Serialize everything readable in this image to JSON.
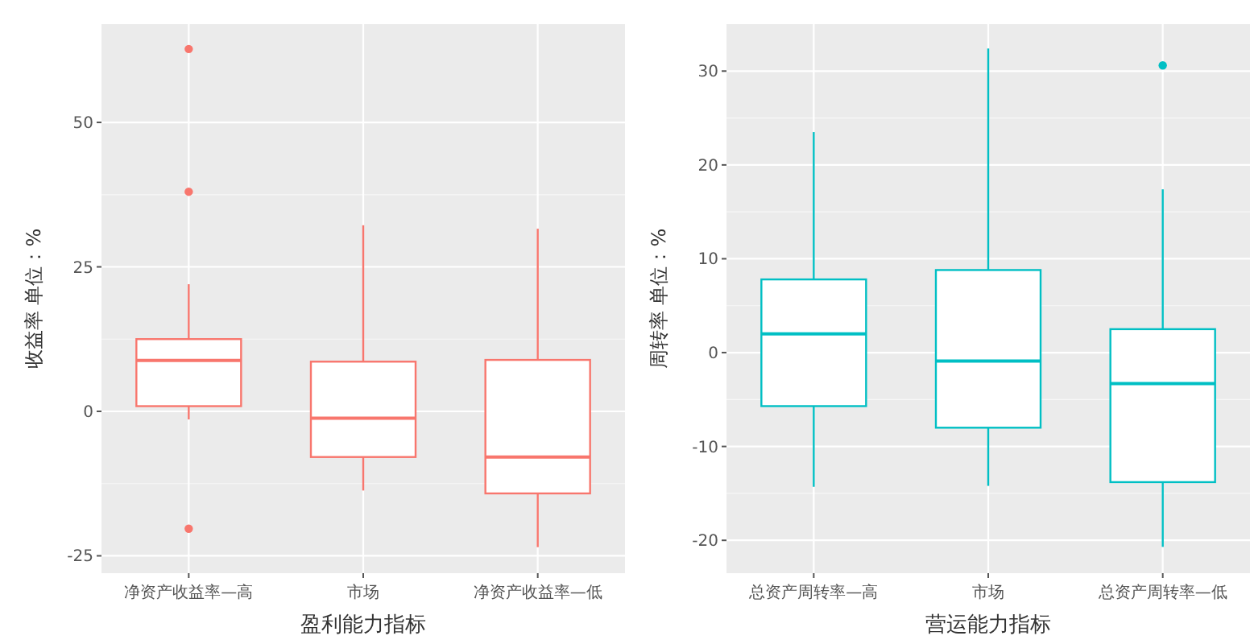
{
  "chart_data": [
    {
      "type": "box",
      "xlabel": "盈利能力指标",
      "ylabel": "收益率 单位：%",
      "categories": [
        "净资产收益率—高",
        "市场",
        "净资产收益率—低"
      ],
      "color": "#f8766d",
      "ylim": [
        -28,
        67
      ],
      "yticks": [
        -25,
        0,
        25,
        50
      ],
      "grid": true,
      "boxes": [
        {
          "low": -1.4,
          "q1": 0.9,
          "median": 8.8,
          "q3": 12.5,
          "high": 22,
          "outliers": [
            62.7,
            38,
            -20.3
          ]
        },
        {
          "low": -13.7,
          "q1": -7.9,
          "median": -1.2,
          "q3": 8.6,
          "high": 32.2
        },
        {
          "low": -23.5,
          "q1": -14.2,
          "median": -7.9,
          "q3": 8.9,
          "high": 31.6
        }
      ]
    },
    {
      "type": "box",
      "xlabel": "营运能力指标",
      "ylabel": "周转率 单位：%",
      "categories": [
        "总资产周转率—高",
        "市场",
        "总资产周转率—低"
      ],
      "color": "#00bfc4",
      "ylim": [
        -23.5,
        35
      ],
      "yticks": [
        -20,
        -10,
        0,
        10,
        20,
        30
      ],
      "grid": true,
      "boxes": [
        {
          "low": -14.3,
          "q1": -5.7,
          "median": 2,
          "q3": 7.8,
          "high": 23.5
        },
        {
          "low": -14.2,
          "q1": -8,
          "median": -0.9,
          "q3": 8.8,
          "high": 32.4
        },
        {
          "low": -20.7,
          "q1": -13.8,
          "median": -3.3,
          "q3": 2.5,
          "high": 17.4,
          "outliers": [
            30.6
          ]
        }
      ]
    }
  ]
}
